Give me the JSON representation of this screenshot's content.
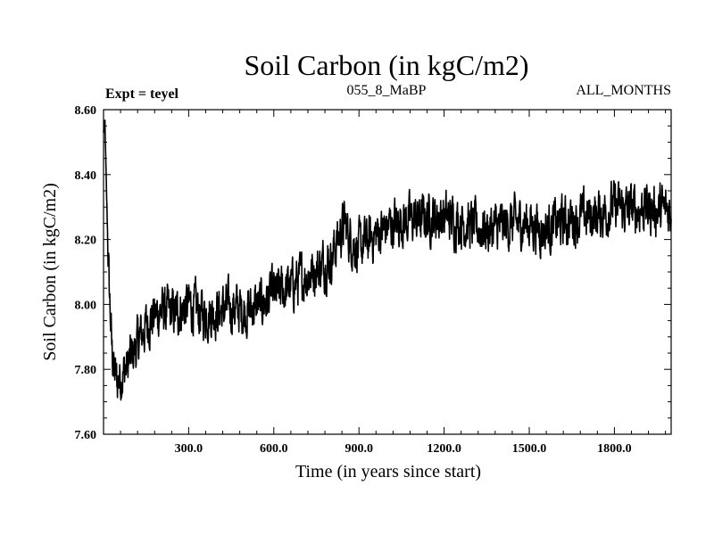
{
  "chart_data": {
    "type": "line",
    "title": "Soil Carbon (in kgC/m2)",
    "experiment_label": "Expt = teyel",
    "subtitle_center": "055_8_MaBP",
    "subtitle_right": "ALL_MONTHS",
    "xlabel": "Time (in years since start)",
    "ylabel": "Soil Carbon (in kgC/m2)",
    "xlim": [
      0,
      2000
    ],
    "ylim": [
      7.6,
      8.6
    ],
    "x_ticks": [
      300,
      600,
      900,
      1200,
      1500,
      1800
    ],
    "x_tick_labels": [
      "300.0",
      "600.0",
      "900.0",
      "1200.0",
      "1500.0",
      "1800.0"
    ],
    "y_ticks": [
      7.6,
      7.8,
      8.0,
      8.2,
      8.4,
      8.6
    ],
    "y_tick_labels": [
      "7.60",
      "7.80",
      "8.00",
      "8.20",
      "8.40",
      "8.60"
    ],
    "series": [
      {
        "name": "Soil Carbon",
        "color": "#000000",
        "x": [
          0,
          5,
          10,
          20,
          30,
          40,
          50,
          60,
          80,
          100,
          130,
          160,
          200,
          250,
          300,
          350,
          400,
          450,
          500,
          550,
          600,
          650,
          700,
          750,
          800,
          830,
          850,
          870,
          900,
          950,
          1000,
          1050,
          1100,
          1150,
          1200,
          1250,
          1300,
          1350,
          1400,
          1450,
          1500,
          1550,
          1600,
          1650,
          1700,
          1750,
          1800,
          1850,
          1900,
          1950,
          2000
        ],
        "values": [
          8.53,
          8.55,
          8.35,
          8.05,
          7.85,
          7.78,
          7.76,
          7.78,
          7.8,
          7.84,
          7.9,
          7.95,
          7.98,
          7.97,
          8.0,
          7.97,
          7.98,
          7.99,
          7.98,
          8.0,
          8.03,
          8.05,
          8.08,
          8.11,
          8.14,
          8.21,
          8.25,
          8.2,
          8.17,
          8.21,
          8.24,
          8.26,
          8.26,
          8.27,
          8.27,
          8.26,
          8.24,
          8.23,
          8.24,
          8.25,
          8.25,
          8.23,
          8.25,
          8.26,
          8.27,
          8.28,
          8.3,
          8.29,
          8.3,
          8.29,
          8.29
        ],
        "noise_amplitude": 0.06
      }
    ]
  }
}
